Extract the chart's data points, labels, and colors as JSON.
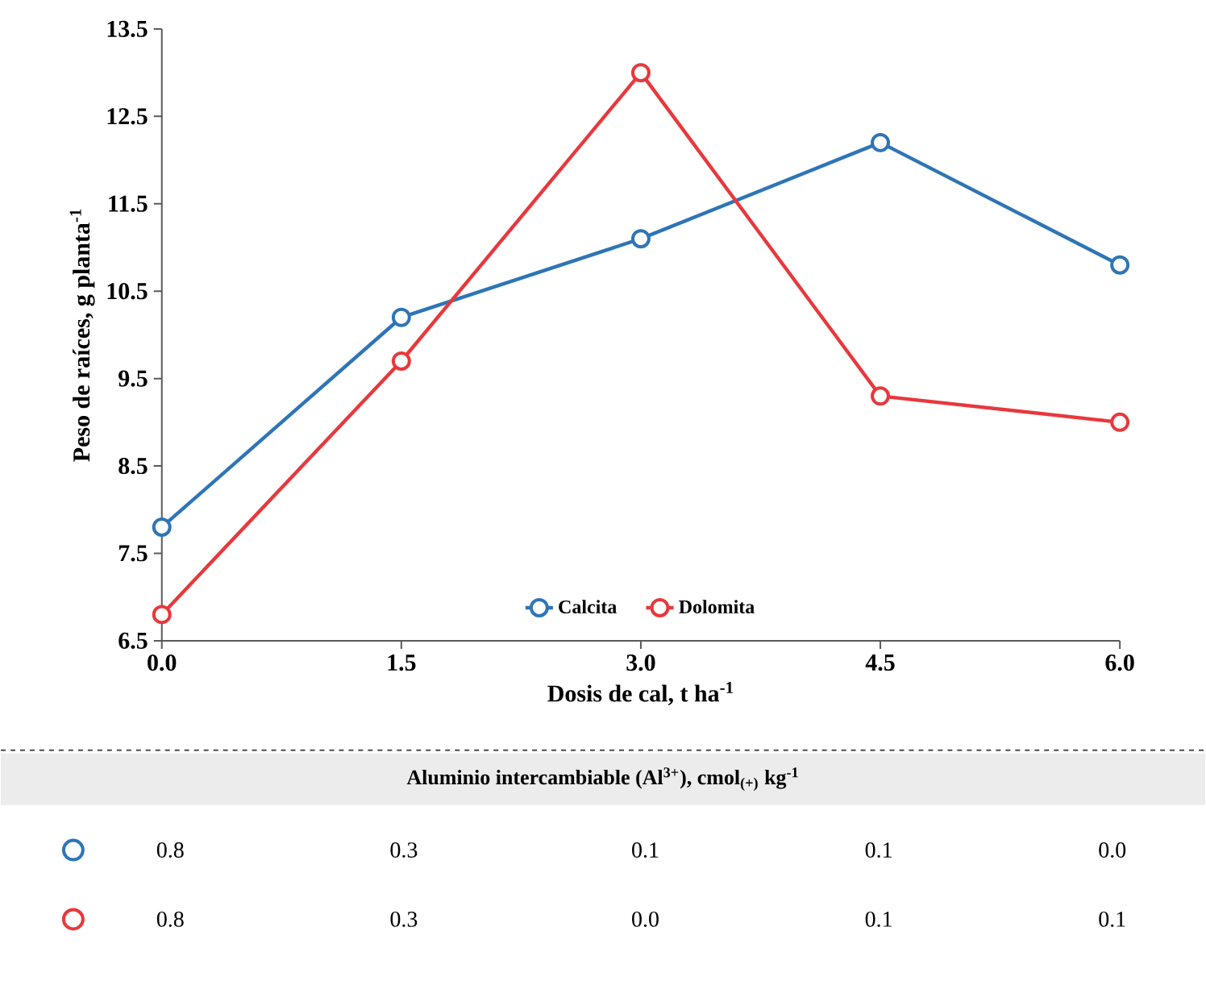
{
  "chart_data": {
    "type": "line",
    "xlabel": "Dosis de cal, t ha$^{-1}$",
    "ylabel": "Peso de raíces, g planta$^{-1}$",
    "x": [
      0,
      1.5,
      3,
      4.5,
      6
    ],
    "xlim": [
      0,
      6
    ],
    "xticks": [
      {
        "value": 0,
        "label": "0.0"
      },
      {
        "value": 1.5,
        "label": "1.5"
      },
      {
        "value": 3,
        "label": "3.0"
      },
      {
        "value": 4.5,
        "label": "4.5"
      },
      {
        "value": 6,
        "label": "6.0"
      }
    ],
    "ylim": [
      6.5,
      13.5
    ],
    "yticks": [
      6.5,
      7.5,
      8.5,
      9.5,
      10.5,
      11.5,
      12.5,
      13.5
    ],
    "series": [
      {
        "name": "Calcita",
        "color": "#2e75b6",
        "values": [
          7.8,
          10.2,
          11.1,
          12.2,
          10.8
        ]
      },
      {
        "name": "Dolomita",
        "color": "#e8383d",
        "values": [
          6.8,
          9.7,
          13.0,
          9.3,
          9.0
        ]
      }
    ],
    "marker": "circle",
    "line_style": "solid",
    "legend": "bottom",
    "annotations": [
      "Aluminio intercambiable (Al$^{3+}$), cmol$_{(+)}$ kg$^{-1}$",
      "0.8",
      "0.3",
      "0.1",
      "0.1",
      "0.0",
      "0.8",
      "0.3",
      "0.0",
      "0.1",
      "0.1"
    ]
  }
}
